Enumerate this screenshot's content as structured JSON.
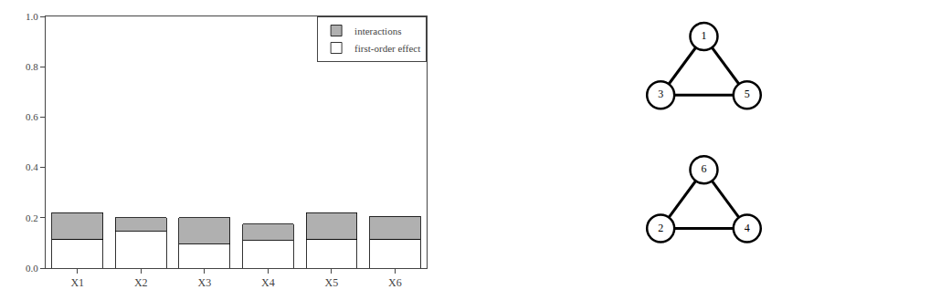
{
  "chart_data": [
    {
      "type": "bar",
      "categories": [
        "X1",
        "X2",
        "X3",
        "X4",
        "X5",
        "X6"
      ],
      "series": [
        {
          "name": "first-order effect",
          "color": "#ffffff",
          "values": [
            0.115,
            0.145,
            0.095,
            0.11,
            0.115,
            0.115
          ]
        },
        {
          "name": "interactions",
          "color": "#b0b0b0",
          "values": [
            0.105,
            0.055,
            0.105,
            0.065,
            0.105,
            0.09
          ]
        }
      ],
      "stacked": true,
      "ylim": [
        0.0,
        1.0
      ],
      "yticks": [
        {
          "value": 0,
          "label": "0.0"
        },
        0.2,
        0.4,
        0.6,
        0.8,
        {
          "value": 1,
          "label": "1.0"
        }
      ],
      "grid": false,
      "legend": "upper right"
    },
    {
      "type": "network",
      "nodes": [
        1,
        3,
        5
      ],
      "edges": [
        [
          1,
          3
        ],
        [
          1,
          5
        ],
        [
          3,
          5
        ]
      ]
    },
    {
      "type": "network",
      "nodes": [
        6,
        2,
        4
      ],
      "edges": [
        [
          6,
          2
        ],
        [
          6,
          4
        ],
        [
          2,
          4
        ]
      ]
    }
  ]
}
